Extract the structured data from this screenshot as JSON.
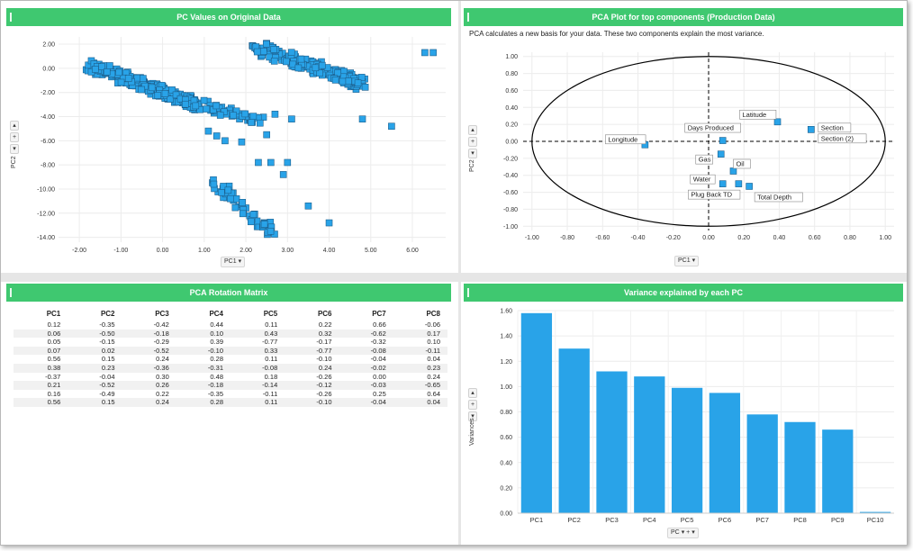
{
  "panels": {
    "scatter": {
      "title": "PC Values on Original Data",
      "x_axis_label": "PC1",
      "y_axis_label": "PC2",
      "x_ticks": [
        "-2.00",
        "-1.00",
        "0.00",
        "1.00",
        "2.00",
        "3.00",
        "4.00",
        "5.00",
        "6.00"
      ],
      "y_ticks": [
        "2.00",
        "0.00",
        "-2.00",
        "-4.00",
        "-6.00",
        "-8.00",
        "-10.00",
        "-12.00",
        "-14.00"
      ]
    },
    "biplot": {
      "title": "PCA Plot for top components (Production Data)",
      "subtitle": "PCA calculates a new basis for your data. These two components explain the most variance.",
      "x_axis_label": "PC1",
      "y_axis_label": "PC2",
      "x_ticks": [
        "-1.00",
        "-0.80",
        "-0.60",
        "-0.40",
        "-0.20",
        "0.00",
        "0.20",
        "0.40",
        "0.60",
        "0.80",
        "1.00"
      ],
      "y_ticks": [
        "1.00",
        "0.80",
        "0.60",
        "0.40",
        "0.20",
        "0.00",
        "-0.20",
        "-0.40",
        "-0.60",
        "-0.80",
        "-1.00"
      ],
      "points": [
        {
          "label": "Longitude",
          "x": -0.36,
          "y": -0.04
        },
        {
          "label": "Days Produced",
          "x": 0.08,
          "y": 0.01
        },
        {
          "label": "Latitude",
          "x": 0.39,
          "y": 0.23
        },
        {
          "label": "Section",
          "x": 0.58,
          "y": 0.14
        },
        {
          "label": "Section (2)",
          "x": 0.58,
          "y": 0.14
        },
        {
          "label": "Gas",
          "x": 0.07,
          "y": -0.15
        },
        {
          "label": "Oil",
          "x": 0.14,
          "y": -0.35
        },
        {
          "label": "Water",
          "x": 0.08,
          "y": -0.5
        },
        {
          "label": "Plug Back TD",
          "x": 0.17,
          "y": -0.5
        },
        {
          "label": "Total Depth",
          "x": 0.23,
          "y": -0.53
        }
      ]
    },
    "rotation": {
      "title": "PCA Rotation Matrix",
      "columns": [
        "PC1",
        "PC2",
        "PC3",
        "PC4",
        "PC5",
        "PC6",
        "PC7",
        "PC8"
      ],
      "rows": [
        [
          "0.12",
          "-0.35",
          "-0.42",
          "0.44",
          "0.11",
          "0.22",
          "0.66",
          "-0.06"
        ],
        [
          "0.06",
          "-0.50",
          "-0.18",
          "0.10",
          "0.43",
          "0.32",
          "-0.62",
          "0.17"
        ],
        [
          "0.05",
          "-0.15",
          "-0.29",
          "0.39",
          "-0.77",
          "-0.17",
          "-0.32",
          "0.10"
        ],
        [
          "0.07",
          "0.02",
          "-0.52",
          "-0.10",
          "0.33",
          "-0.77",
          "-0.08",
          "-0.11"
        ],
        [
          "0.56",
          "0.15",
          "0.24",
          "0.28",
          "0.11",
          "-0.10",
          "-0.04",
          "0.04"
        ],
        [
          "0.38",
          "0.23",
          "-0.36",
          "-0.31",
          "-0.08",
          "0.24",
          "-0.02",
          "0.23"
        ],
        [
          "-0.37",
          "-0.04",
          "0.30",
          "0.48",
          "0.18",
          "-0.26",
          "0.00",
          "0.24"
        ],
        [
          "0.21",
          "-0.52",
          "0.26",
          "-0.18",
          "-0.14",
          "-0.12",
          "-0.03",
          "-0.65"
        ],
        [
          "0.16",
          "-0.49",
          "0.22",
          "-0.35",
          "-0.11",
          "-0.26",
          "0.25",
          "0.64"
        ],
        [
          "0.56",
          "0.15",
          "0.24",
          "0.28",
          "0.11",
          "-0.10",
          "-0.04",
          "0.04"
        ]
      ]
    },
    "variance": {
      "title": "Variance explained by each PC",
      "x_axis_label": "PC",
      "y_axis_label": "Variances"
    }
  },
  "chart_data": {
    "type": "bar",
    "title": "Variance explained by each PC",
    "categories": [
      "PC1",
      "PC2",
      "PC3",
      "PC4",
      "PC5",
      "PC6",
      "PC7",
      "PC8",
      "PC9",
      "PC10"
    ],
    "values": [
      1.58,
      1.3,
      1.12,
      1.08,
      0.99,
      0.95,
      0.78,
      0.72,
      0.66,
      0.01
    ],
    "xlabel": "PC",
    "ylabel": "Variances",
    "ylim": [
      0,
      1.6
    ],
    "y_ticks": [
      "1.60",
      "1.40",
      "1.20",
      "1.00",
      "0.80",
      "0.60",
      "0.40",
      "0.20",
      "0.00"
    ]
  },
  "colors": {
    "header": "#3fc870",
    "marker": "#29a3e8",
    "bar": "#29a3e8"
  }
}
